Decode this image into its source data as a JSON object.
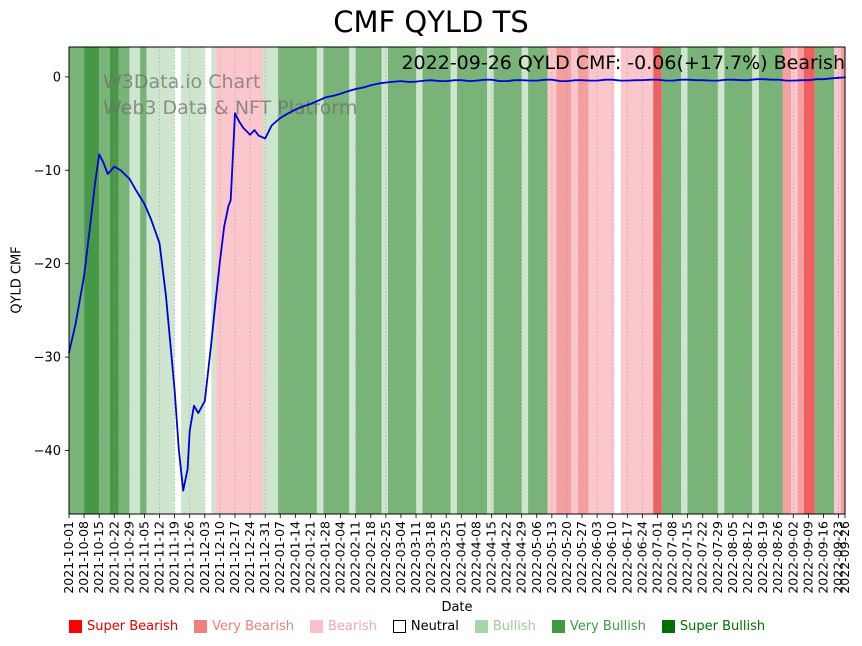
{
  "title": "CMF QYLD TS",
  "annotation": "2022-09-26 QYLD CMF: -0.06(+17.7%) Bearish",
  "watermark": {
    "line1": "W3Data.io Chart",
    "line2": "Web3 Data & NFT Platform"
  },
  "axes": {
    "y_label": "QYLD CMF",
    "x_label": "Date"
  },
  "legend": [
    {
      "label": "Super Bearish",
      "color": "#ff0000",
      "text_color": "#e00000"
    },
    {
      "label": "Very Bearish",
      "color": "#f08080",
      "text_color": "#ef7f7f"
    },
    {
      "label": "Bearish",
      "color": "#ffc0cb",
      "text_color": "#f5a6b2"
    },
    {
      "label": "Neutral",
      "color": "#ffffff",
      "text_color": "#000000",
      "border": "#000000"
    },
    {
      "label": "Bullish",
      "color": "#a8d5a8",
      "text_color": "#9ccb9c"
    },
    {
      "label": "Very Bullish",
      "color": "#3f9b3f",
      "text_color": "#3f9b3f"
    },
    {
      "label": "Super Bullish",
      "color": "#007000",
      "text_color": "#007000"
    }
  ],
  "chart_data": {
    "type": "line",
    "title": "CMF QYLD TS",
    "xlabel": "Date",
    "ylabel": "QYLD CMF",
    "ylim": [
      -46.8,
      3.2
    ],
    "total_days": 360,
    "grid": "vertical-dotted",
    "legend_position": "bottom",
    "y_ticks": [
      {
        "v": 0,
        "label": "0"
      },
      {
        "v": -10,
        "label": "−10"
      },
      {
        "v": -20,
        "label": "−20"
      },
      {
        "v": -30,
        "label": "−30"
      },
      {
        "v": -40,
        "label": "−40"
      }
    ],
    "x_ticks": [
      {
        "d": 0,
        "label": "2021-10-01"
      },
      {
        "d": 7,
        "label": "2021-10-08"
      },
      {
        "d": 14,
        "label": "2021-10-15"
      },
      {
        "d": 21,
        "label": "2021-10-22"
      },
      {
        "d": 28,
        "label": "2021-10-29"
      },
      {
        "d": 35,
        "label": "2021-11-05"
      },
      {
        "d": 42,
        "label": "2021-11-12"
      },
      {
        "d": 49,
        "label": "2021-11-19"
      },
      {
        "d": 56,
        "label": "2021-11-26"
      },
      {
        "d": 63,
        "label": "2021-12-03"
      },
      {
        "d": 70,
        "label": "2021-12-10"
      },
      {
        "d": 77,
        "label": "2021-12-17"
      },
      {
        "d": 84,
        "label": "2021-12-24"
      },
      {
        "d": 91,
        "label": "2021-12-31"
      },
      {
        "d": 98,
        "label": "2022-01-07"
      },
      {
        "d": 105,
        "label": "2022-01-14"
      },
      {
        "d": 112,
        "label": "2022-01-21"
      },
      {
        "d": 119,
        "label": "2022-01-28"
      },
      {
        "d": 126,
        "label": "2022-02-04"
      },
      {
        "d": 133,
        "label": "2022-02-11"
      },
      {
        "d": 140,
        "label": "2022-02-18"
      },
      {
        "d": 147,
        "label": "2022-02-25"
      },
      {
        "d": 154,
        "label": "2022-03-04"
      },
      {
        "d": 161,
        "label": "2022-03-11"
      },
      {
        "d": 168,
        "label": "2022-03-18"
      },
      {
        "d": 175,
        "label": "2022-03-25"
      },
      {
        "d": 182,
        "label": "2022-04-01"
      },
      {
        "d": 189,
        "label": "2022-04-08"
      },
      {
        "d": 196,
        "label": "2022-04-15"
      },
      {
        "d": 203,
        "label": "2022-04-22"
      },
      {
        "d": 210,
        "label": "2022-04-29"
      },
      {
        "d": 217,
        "label": "2022-05-06"
      },
      {
        "d": 224,
        "label": "2022-05-13"
      },
      {
        "d": 231,
        "label": "2022-05-20"
      },
      {
        "d": 238,
        "label": "2022-05-27"
      },
      {
        "d": 245,
        "label": "2022-06-03"
      },
      {
        "d": 252,
        "label": "2022-06-10"
      },
      {
        "d": 259,
        "label": "2022-06-17"
      },
      {
        "d": 266,
        "label": "2022-06-24"
      },
      {
        "d": 273,
        "label": "2022-07-01"
      },
      {
        "d": 280,
        "label": "2022-07-08"
      },
      {
        "d": 287,
        "label": "2022-07-15"
      },
      {
        "d": 294,
        "label": "2022-07-22"
      },
      {
        "d": 301,
        "label": "2022-07-29"
      },
      {
        "d": 308,
        "label": "2022-08-05"
      },
      {
        "d": 315,
        "label": "2022-08-12"
      },
      {
        "d": 322,
        "label": "2022-08-19"
      },
      {
        "d": 329,
        "label": "2022-08-26"
      },
      {
        "d": 336,
        "label": "2022-09-02"
      },
      {
        "d": 343,
        "label": "2022-09-09"
      },
      {
        "d": 350,
        "label": "2022-09-16"
      },
      {
        "d": 357,
        "label": "2022-09-23"
      },
      {
        "d": 360,
        "label": "2022-09-26"
      }
    ],
    "band_colors": {
      "super_bearish": "#f15e5e",
      "very_bearish": "#f5a0a0",
      "bearish": "#fbc7cc",
      "neutral": "#ffffff",
      "bullish": "#cde6cd",
      "very_bullish": "#78b478",
      "super_bullish": "#469846"
    },
    "bands": [
      [
        0,
        7,
        "very_bullish"
      ],
      [
        7,
        14,
        "super_bullish"
      ],
      [
        14,
        19,
        "very_bullish"
      ],
      [
        19,
        23,
        "super_bullish"
      ],
      [
        23,
        28,
        "very_bullish"
      ],
      [
        28,
        33,
        "bullish"
      ],
      [
        33,
        36,
        "very_bullish"
      ],
      [
        36,
        49,
        "bullish"
      ],
      [
        49,
        52,
        "neutral"
      ],
      [
        52,
        63,
        "bullish"
      ],
      [
        63,
        66,
        "neutral"
      ],
      [
        66,
        68,
        "bullish"
      ],
      [
        68,
        90,
        "bearish"
      ],
      [
        90,
        97,
        "bullish"
      ],
      [
        97,
        115,
        "very_bullish"
      ],
      [
        115,
        118,
        "bullish"
      ],
      [
        118,
        130,
        "very_bullish"
      ],
      [
        130,
        133,
        "bullish"
      ],
      [
        133,
        145,
        "very_bullish"
      ],
      [
        145,
        148,
        "bullish"
      ],
      [
        148,
        161,
        "very_bullish"
      ],
      [
        161,
        164,
        "bullish"
      ],
      [
        164,
        177,
        "very_bullish"
      ],
      [
        177,
        180,
        "bullish"
      ],
      [
        180,
        194,
        "very_bullish"
      ],
      [
        194,
        197,
        "bullish"
      ],
      [
        197,
        210,
        "very_bullish"
      ],
      [
        210,
        213,
        "bullish"
      ],
      [
        213,
        222,
        "very_bullish"
      ],
      [
        222,
        226,
        "bearish"
      ],
      [
        226,
        233,
        "very_bearish"
      ],
      [
        233,
        236,
        "bearish"
      ],
      [
        236,
        241,
        "very_bearish"
      ],
      [
        241,
        253,
        "bearish"
      ],
      [
        253,
        256,
        "neutral"
      ],
      [
        256,
        271,
        "bearish"
      ],
      [
        271,
        275,
        "super_bearish"
      ],
      [
        275,
        284,
        "very_bullish"
      ],
      [
        284,
        287,
        "bullish"
      ],
      [
        287,
        301,
        "very_bullish"
      ],
      [
        301,
        304,
        "bullish"
      ],
      [
        304,
        317,
        "very_bullish"
      ],
      [
        317,
        320,
        "bullish"
      ],
      [
        320,
        331,
        "very_bullish"
      ],
      [
        331,
        335,
        "very_bearish"
      ],
      [
        335,
        338,
        "bearish"
      ],
      [
        338,
        341,
        "very_bearish"
      ],
      [
        341,
        346,
        "super_bearish"
      ],
      [
        346,
        355,
        "very_bullish"
      ],
      [
        355,
        358,
        "bearish"
      ],
      [
        358,
        360,
        "very_bearish"
      ]
    ],
    "series": [
      {
        "name": "QYLD CMF",
        "color": "#0000dd",
        "points": [
          [
            0,
            -29.5
          ],
          [
            3,
            -26.5
          ],
          [
            7,
            -21.3
          ],
          [
            10,
            -15.5
          ],
          [
            12,
            -11.5
          ],
          [
            14,
            -8.3
          ],
          [
            16,
            -9.2
          ],
          [
            18,
            -10.4
          ],
          [
            21,
            -9.6
          ],
          [
            24,
            -10.0
          ],
          [
            28,
            -10.9
          ],
          [
            31,
            -12.1
          ],
          [
            35,
            -13.6
          ],
          [
            38,
            -15.2
          ],
          [
            42,
            -17.8
          ],
          [
            45,
            -23.5
          ],
          [
            49,
            -33.5
          ],
          [
            51,
            -40.0
          ],
          [
            53,
            -44.3
          ],
          [
            55,
            -42.0
          ],
          [
            56,
            -37.9
          ],
          [
            58,
            -35.2
          ],
          [
            60,
            -36.0
          ],
          [
            63,
            -34.7
          ],
          [
            66,
            -28.5
          ],
          [
            68,
            -24.0
          ],
          [
            70,
            -19.8
          ],
          [
            72,
            -16.0
          ],
          [
            74,
            -13.8
          ],
          [
            75,
            -13.2
          ],
          [
            77,
            -3.9
          ],
          [
            79,
            -4.8
          ],
          [
            81,
            -5.5
          ],
          [
            84,
            -6.2
          ],
          [
            86,
            -5.7
          ],
          [
            88,
            -6.3
          ],
          [
            91,
            -6.6
          ],
          [
            94,
            -5.2
          ],
          [
            98,
            -4.4
          ],
          [
            101,
            -4.0
          ],
          [
            105,
            -3.5
          ],
          [
            108,
            -3.2
          ],
          [
            112,
            -2.9
          ],
          [
            115,
            -2.6
          ],
          [
            119,
            -2.2
          ],
          [
            123,
            -2.0
          ],
          [
            126,
            -1.8
          ],
          [
            130,
            -1.5
          ],
          [
            133,
            -1.3
          ],
          [
            137,
            -1.1
          ],
          [
            140,
            -0.9
          ],
          [
            144,
            -0.7
          ],
          [
            147,
            -0.6
          ],
          [
            151,
            -0.5
          ],
          [
            154,
            -0.45
          ],
          [
            158,
            -0.55
          ],
          [
            161,
            -0.5
          ],
          [
            165,
            -0.4
          ],
          [
            168,
            -0.35
          ],
          [
            172,
            -0.45
          ],
          [
            175,
            -0.45
          ],
          [
            179,
            -0.35
          ],
          [
            182,
            -0.35
          ],
          [
            186,
            -0.45
          ],
          [
            189,
            -0.4
          ],
          [
            193,
            -0.3
          ],
          [
            196,
            -0.3
          ],
          [
            200,
            -0.45
          ],
          [
            203,
            -0.45
          ],
          [
            207,
            -0.35
          ],
          [
            210,
            -0.35
          ],
          [
            214,
            -0.4
          ],
          [
            217,
            -0.4
          ],
          [
            221,
            -0.3
          ],
          [
            224,
            -0.3
          ],
          [
            228,
            -0.45
          ],
          [
            231,
            -0.45
          ],
          [
            235,
            -0.35
          ],
          [
            238,
            -0.35
          ],
          [
            242,
            -0.4
          ],
          [
            245,
            -0.4
          ],
          [
            249,
            -0.3
          ],
          [
            252,
            -0.3
          ],
          [
            256,
            -0.4
          ],
          [
            259,
            -0.4
          ],
          [
            263,
            -0.35
          ],
          [
            266,
            -0.35
          ],
          [
            270,
            -0.3
          ],
          [
            273,
            -0.3
          ],
          [
            277,
            -0.4
          ],
          [
            280,
            -0.4
          ],
          [
            284,
            -0.3
          ],
          [
            287,
            -0.3
          ],
          [
            291,
            -0.35
          ],
          [
            294,
            -0.35
          ],
          [
            298,
            -0.4
          ],
          [
            301,
            -0.4
          ],
          [
            305,
            -0.3
          ],
          [
            308,
            -0.3
          ],
          [
            312,
            -0.35
          ],
          [
            315,
            -0.35
          ],
          [
            319,
            -0.25
          ],
          [
            322,
            -0.25
          ],
          [
            326,
            -0.3
          ],
          [
            329,
            -0.3
          ],
          [
            333,
            -0.4
          ],
          [
            336,
            -0.4
          ],
          [
            340,
            -0.35
          ],
          [
            343,
            -0.35
          ],
          [
            347,
            -0.25
          ],
          [
            350,
            -0.25
          ],
          [
            354,
            -0.15
          ],
          [
            357,
            -0.1
          ],
          [
            360,
            -0.06
          ]
        ]
      }
    ]
  }
}
